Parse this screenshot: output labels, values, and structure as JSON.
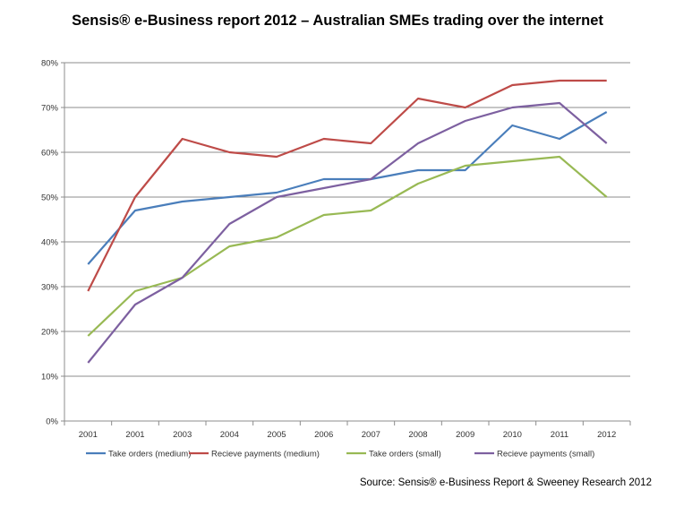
{
  "chart_data": {
    "type": "line",
    "title": "Sensis® e-Business report 2012 – Australian SMEs trading over the internet",
    "x_categories": [
      "2001",
      "2001",
      "2003",
      "2004",
      "2005",
      "2006",
      "2007",
      "2008",
      "2009",
      "2010",
      "2011",
      "2012"
    ],
    "y_ticks": [
      "0%",
      "10%",
      "20%",
      "30%",
      "40%",
      "50%",
      "60%",
      "70%",
      "80%"
    ],
    "ylim": [
      0,
      80
    ],
    "ylabel": "",
    "xlabel": "",
    "grid": true,
    "legend_position": "bottom",
    "series": [
      {
        "name": "Take orders (medium)",
        "color": "#4a7ebb",
        "values": [
          35,
          47,
          49,
          50,
          51,
          54,
          54,
          56,
          56,
          66,
          63,
          69
        ]
      },
      {
        "name": "Recieve payments (medium)",
        "color": "#be4b48",
        "values": [
          29,
          50,
          63,
          60,
          59,
          63,
          62,
          72,
          70,
          75,
          76,
          76
        ]
      },
      {
        "name": "Take orders (small)",
        "color": "#98b954",
        "values": [
          19,
          29,
          32,
          39,
          41,
          46,
          47,
          53,
          57,
          58,
          59,
          50
        ]
      },
      {
        "name": "Recieve payments (small)",
        "color": "#7d60a0",
        "values": [
          13,
          26,
          32,
          44,
          50,
          52,
          54,
          62,
          67,
          70,
          71,
          62
        ]
      }
    ],
    "source": "Source: Sensis® e-Business Report & Sweeney Research 2012"
  }
}
